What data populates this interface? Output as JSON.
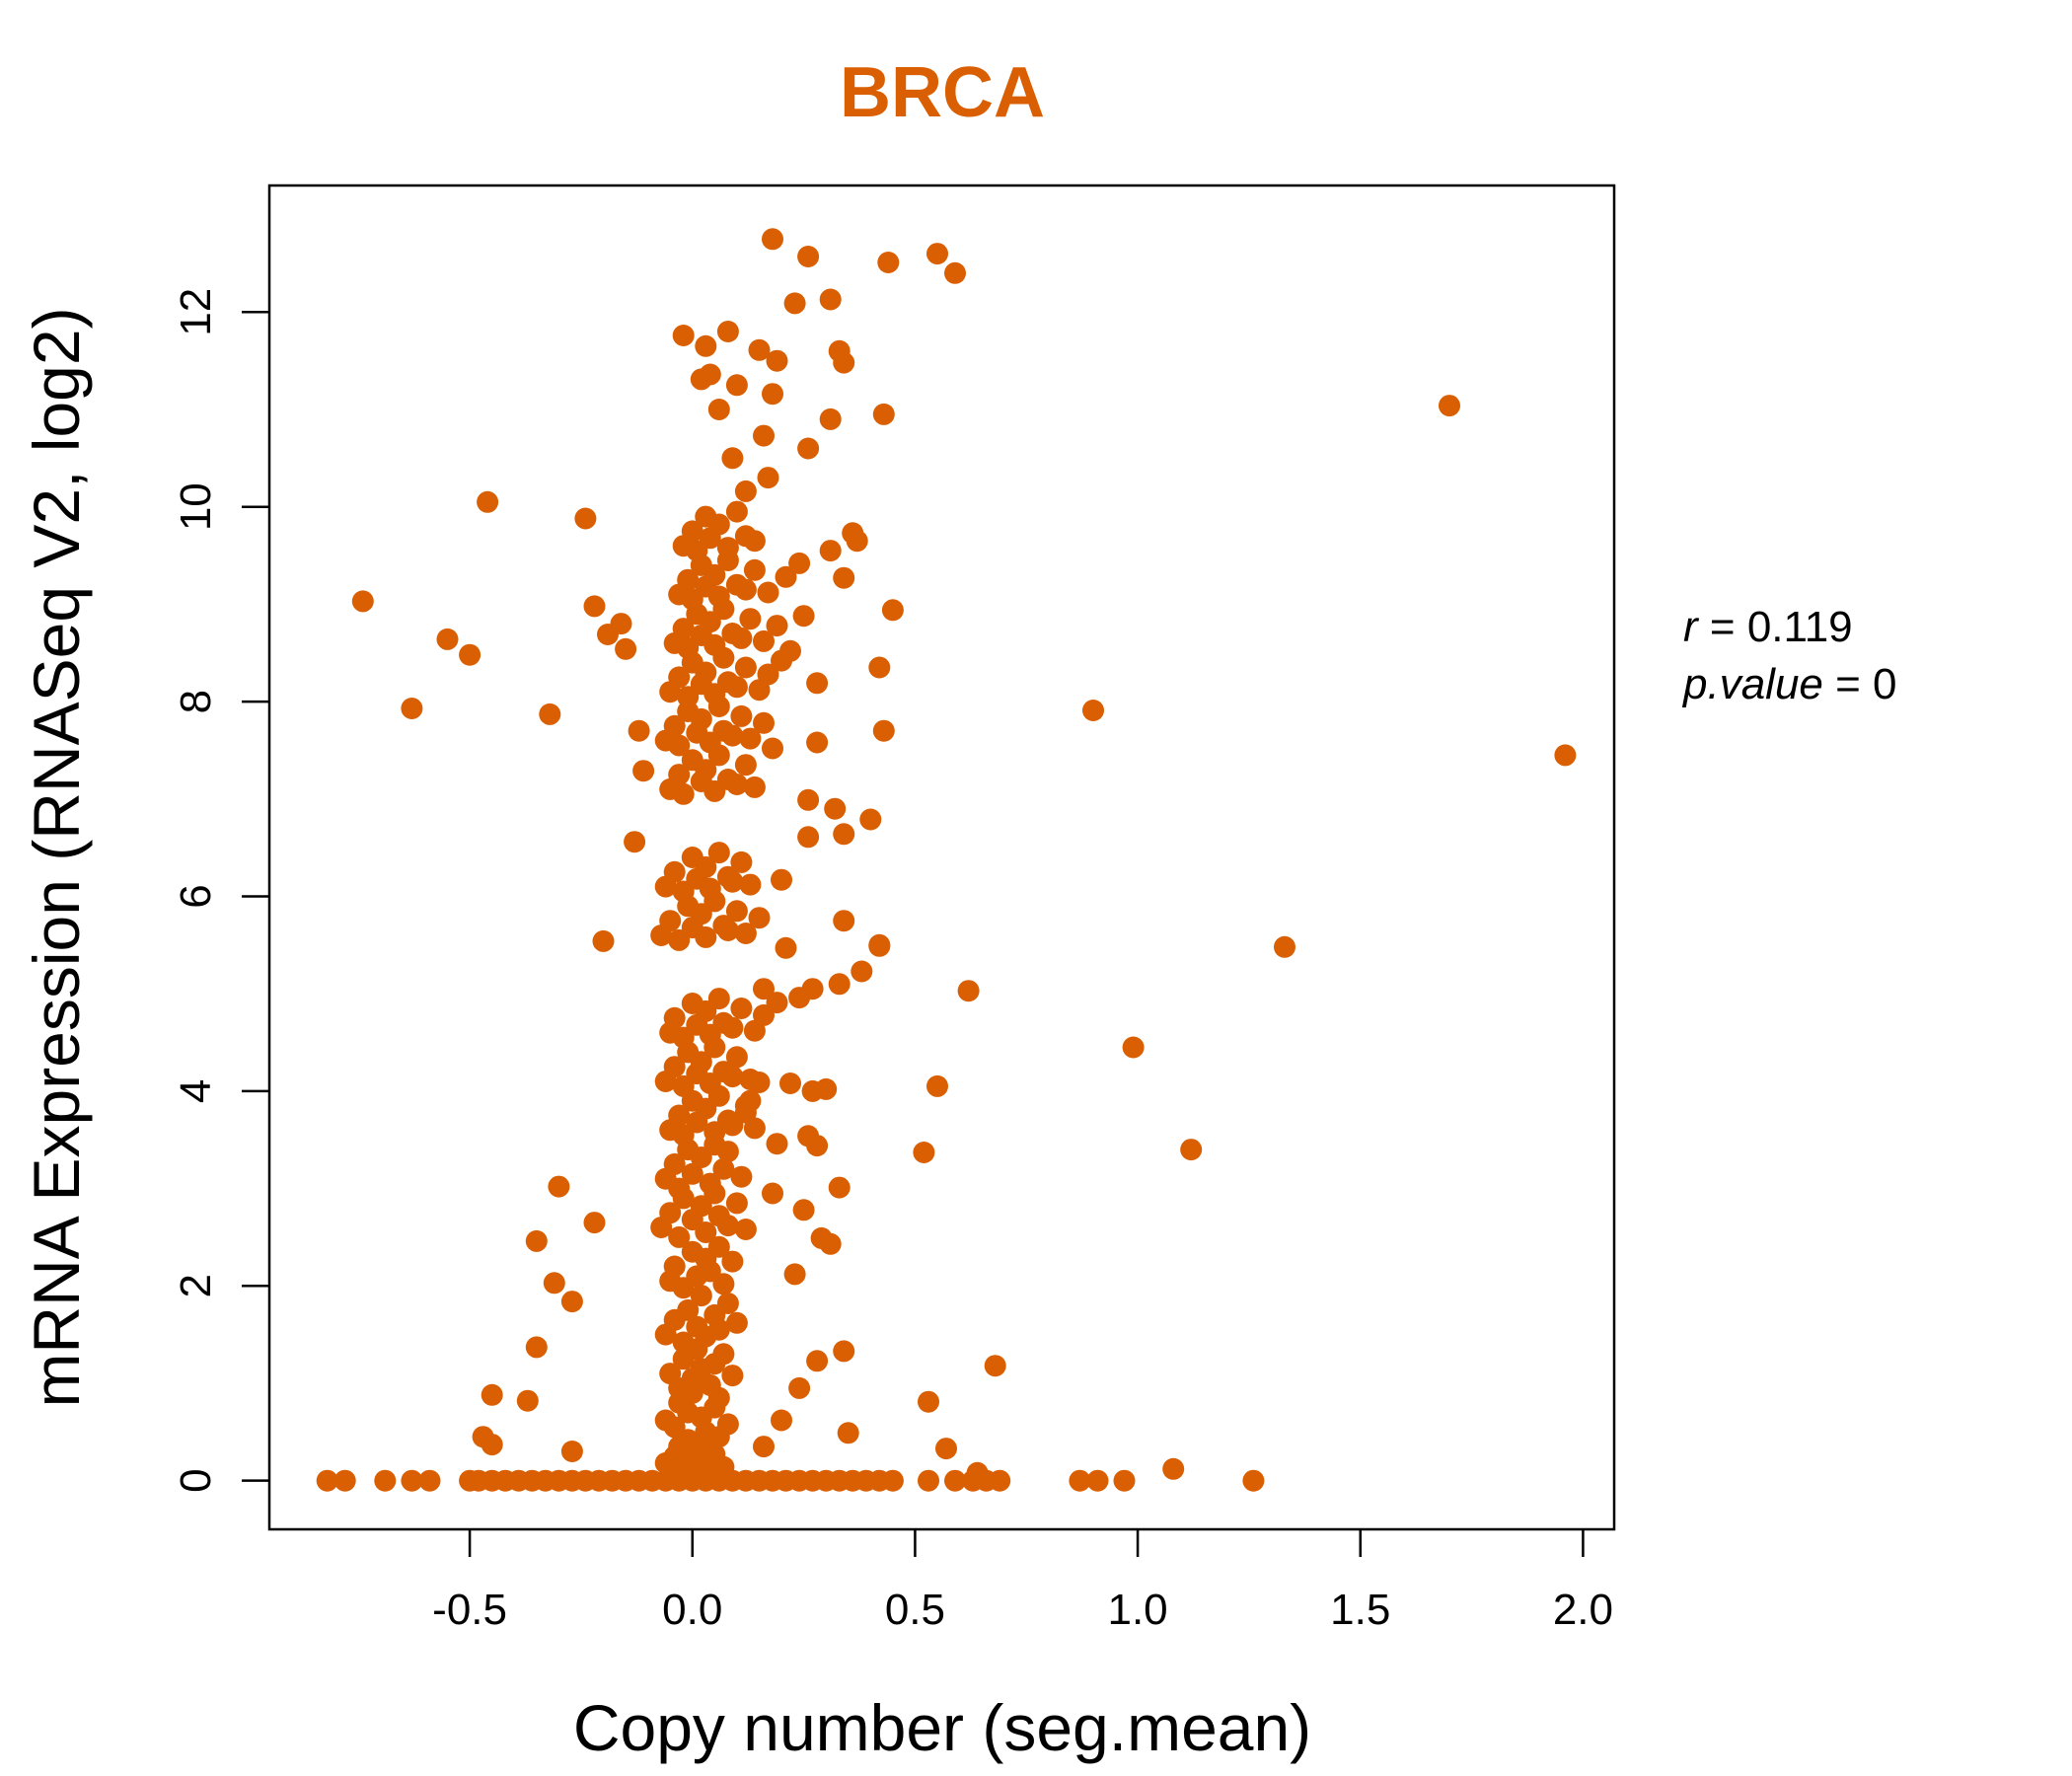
{
  "colors": {
    "points": "#D95F02",
    "title": "#D95F02",
    "axis": "#000000"
  },
  "chart_data": {
    "type": "scatter",
    "title": "BRCA",
    "xlabel": "Copy number (seg.mean)",
    "ylabel": "mRNA Expression (RNASeq V2, log2)",
    "xlim": [
      -0.95,
      2.07
    ],
    "ylim": [
      -0.5,
      13.3
    ],
    "xticks": [
      -0.5,
      0.0,
      0.5,
      1.0,
      1.5,
      2.0
    ],
    "xtick_labels": [
      "-0.5",
      "0.0",
      "0.5",
      "1.0",
      "1.5",
      "2.0"
    ],
    "yticks": [
      0,
      2,
      4,
      6,
      8,
      10,
      12
    ],
    "ytick_labels": [
      "0",
      "2",
      "4",
      "6",
      "8",
      "10",
      "12"
    ],
    "grid": false,
    "stats": {
      "r_label": "r",
      "r_value": "0.119",
      "p_label": "p.value",
      "p_value": "0"
    },
    "series": [
      {
        "x": [
          -0.82,
          -0.78,
          -0.69,
          -0.63,
          -0.59,
          -0.5,
          -0.48,
          -0.45,
          -0.42,
          -0.39,
          -0.36,
          -0.33,
          -0.3,
          -0.27,
          -0.24,
          -0.21,
          -0.18,
          -0.15,
          -0.12,
          -0.09,
          -0.06,
          -0.03,
          0.0,
          0.03,
          0.06,
          0.09,
          0.12,
          0.15,
          0.18,
          0.21,
          0.24,
          0.27,
          0.3,
          0.33,
          0.36,
          0.39,
          0.42,
          0.45,
          0.53,
          0.59,
          0.63,
          0.66,
          0.69,
          0.87,
          0.91,
          0.97,
          1.26,
          -0.74,
          -0.63,
          -0.55,
          -0.5,
          -0.46,
          -0.32,
          -0.24,
          -0.22,
          -0.19,
          -0.16,
          -0.15,
          -0.12,
          -0.11,
          -0.13,
          -0.2,
          -0.22,
          -0.27,
          -0.31,
          -0.3,
          -0.35,
          -0.35,
          -0.37,
          -0.45,
          -0.47,
          -0.45,
          -0.27,
          0.18,
          0.26,
          0.44,
          0.55,
          0.59,
          0.23,
          0.31,
          0.33,
          0.34,
          0.43,
          0.26,
          0.31,
          0.19,
          0.15,
          0.18,
          0.16,
          0.1,
          0.08,
          0.03,
          -0.02,
          0.02,
          0.04,
          0.06,
          0.09,
          0.12,
          0.36,
          0.37,
          0.31,
          0.34,
          0.45,
          0.42,
          0.28,
          0.43,
          0.28,
          0.26,
          0.32,
          0.4,
          0.34,
          0.26,
          0.2,
          0.34,
          0.42,
          0.38,
          0.33,
          0.27,
          0.24,
          0.21,
          0.19,
          0.16,
          0.15,
          0.13,
          0.12,
          0.3,
          0.27,
          0.55,
          0.52,
          0.62,
          0.42,
          0.33,
          0.28,
          0.26,
          0.22,
          0.19,
          0.25,
          0.31,
          0.29,
          0.23,
          0.18,
          0.34,
          0.57,
          0.35,
          0.53,
          0.68,
          0.64,
          0.2,
          0.16,
          0.24,
          0.28,
          1.7,
          1.96,
          0.9,
          1.33,
          0.99,
          1.12,
          1.08,
          -0.06,
          -0.05,
          -0.04,
          -0.03,
          -0.02,
          -0.01,
          0.0,
          0.01,
          0.02,
          0.03,
          0.04,
          0.05,
          0.06,
          0.07,
          -0.06,
          -0.04,
          -0.03,
          -0.01,
          0.0,
          0.02,
          0.03,
          0.05,
          0.06,
          0.08,
          -0.05,
          -0.03,
          -0.02,
          0.0,
          0.01,
          0.02,
          0.04,
          0.05,
          0.07,
          0.09,
          -0.06,
          -0.04,
          -0.02,
          -0.01,
          0.01,
          0.02,
          0.03,
          0.05,
          0.06,
          0.08,
          0.1,
          -0.05,
          -0.04,
          -0.02,
          0.0,
          0.01,
          0.03,
          0.04,
          0.06,
          0.07,
          0.09,
          -0.07,
          -0.05,
          -0.03,
          -0.02,
          0.0,
          0.02,
          0.03,
          0.05,
          0.06,
          0.08,
          0.1,
          0.12,
          -0.06,
          -0.04,
          -0.03,
          -0.01,
          0.0,
          0.02,
          0.04,
          0.05,
          0.07,
          0.08,
          0.11,
          -0.05,
          -0.03,
          -0.02,
          0.0,
          0.01,
          0.03,
          0.05,
          0.06,
          0.08,
          0.09,
          0.12,
          0.14,
          -0.06,
          -0.04,
          -0.02,
          -0.01,
          0.01,
          0.02,
          0.04,
          0.05,
          0.07,
          0.09,
          0.1,
          0.13,
          -0.05,
          -0.04,
          -0.02,
          0.0,
          0.01,
          0.03,
          0.04,
          0.06,
          0.07,
          0.09,
          0.11,
          0.14,
          0.16,
          -0.07,
          -0.05,
          -0.03,
          -0.01,
          0.0,
          0.02,
          0.03,
          0.05,
          0.07,
          0.08,
          0.1,
          0.12,
          0.15,
          -0.06,
          -0.04,
          -0.02,
          0.0,
          0.01,
          0.03,
          0.04,
          0.06,
          0.08,
          0.09,
          0.11,
          0.13,
          -0.05,
          -0.03,
          -0.02,
          0.0,
          0.02,
          0.03,
          0.05,
          0.06,
          0.08,
          0.1,
          0.12,
          0.14,
          -0.06,
          -0.04,
          -0.03,
          -0.01,
          0.01,
          0.02,
          0.04,
          0.06,
          0.07,
          0.09,
          0.11,
          0.13,
          0.16,
          0.18,
          -0.05,
          -0.03,
          -0.01,
          0.0,
          0.02,
          0.03,
          0.05,
          0.07,
          0.08,
          0.1,
          0.12,
          0.15,
          0.17,
          0.2,
          -0.04,
          -0.02,
          -0.01,
          0.01,
          0.02,
          0.04,
          0.05,
          0.07,
          0.09,
          0.11,
          0.13,
          0.16,
          0.19,
          0.22,
          0.25,
          -0.03,
          -0.01,
          0.0,
          0.02,
          0.03,
          0.05,
          0.06,
          0.08,
          0.1,
          0.12,
          0.14,
          0.17,
          0.21,
          0.24,
          -0.02,
          0.0,
          0.01,
          0.03,
          0.04,
          0.06,
          0.08,
          0.1,
          0.12,
          0.14,
          0.17
        ],
        "y": [
          0,
          0,
          0,
          0,
          0,
          0,
          0,
          0,
          0,
          0,
          0,
          0,
          0,
          0,
          0,
          0,
          0,
          0,
          0,
          0,
          0,
          0,
          0,
          0,
          0,
          0,
          0,
          0,
          0,
          0,
          0,
          0,
          0,
          0,
          0,
          0,
          0,
          0,
          0,
          0,
          0,
          0,
          0,
          0,
          0,
          0,
          0,
          9.03,
          7.93,
          8.64,
          8.48,
          10.05,
          7.87,
          9.88,
          8.98,
          8.69,
          8.8,
          8.54,
          7.7,
          7.29,
          6.56,
          5.54,
          2.65,
          1.84,
          2.03,
          3.02,
          2.46,
          1.37,
          0.82,
          0.88,
          0.45,
          0.37,
          0.3,
          12.75,
          12.57,
          12.51,
          12.6,
          12.4,
          12.09,
          12.13,
          11.6,
          11.48,
          10.95,
          10.6,
          10.9,
          11.5,
          11.61,
          11.16,
          10.73,
          11.25,
          11.8,
          11.65,
          11.76,
          11.31,
          11.36,
          11.0,
          10.5,
          10.16,
          9.73,
          9.65,
          9.55,
          9.27,
          8.94,
          8.35,
          8.19,
          7.7,
          7.58,
          6.99,
          6.9,
          6.79,
          6.64,
          6.61,
          6.17,
          5.75,
          5.5,
          5.23,
          5.1,
          5.05,
          4.96,
          5.47,
          4.91,
          5.05,
          4.09,
          3.9,
          3.78,
          4.02,
          4.0,
          4.05,
          3.37,
          5.03,
          5.49,
          3.01,
          3.44,
          3.54,
          4.08,
          3.46,
          2.78,
          2.43,
          2.49,
          2.12,
          2.95,
          1.33,
          0.33,
          0.49,
          0.81,
          1.18,
          0.08,
          0.62,
          0.35,
          0.95,
          1.23,
          11.04,
          7.45,
          7.91,
          5.48,
          4.45,
          3.4,
          0.12,
          0.18,
          0.12,
          0.25,
          0.35,
          0.16,
          0.42,
          0.3,
          0.22,
          0.1,
          0.38,
          0.19,
          0.27,
          0.45,
          0.14,
          0.62,
          0.55,
          0.8,
          0.7,
          0.9,
          0.65,
          0.5,
          0.75,
          0.85,
          0.58,
          1.1,
          0.95,
          1.25,
          1.05,
          1.35,
          1.15,
          0.98,
          1.2,
          1.3,
          1.08,
          1.5,
          1.65,
          1.42,
          1.75,
          1.58,
          1.9,
          1.48,
          1.7,
          1.55,
          1.82,
          1.62,
          2.05,
          2.2,
          1.98,
          2.35,
          2.1,
          2.28,
          2.15,
          2.4,
          2.02,
          2.25,
          2.6,
          2.75,
          2.5,
          2.9,
          2.68,
          2.82,
          2.55,
          2.95,
          2.72,
          2.62,
          2.85,
          2.58,
          3.1,
          3.25,
          3.0,
          3.4,
          3.15,
          3.32,
          3.05,
          3.45,
          3.2,
          3.38,
          3.12,
          3.6,
          3.75,
          3.55,
          3.9,
          3.68,
          3.82,
          3.58,
          3.95,
          3.7,
          3.65,
          3.85,
          3.62,
          4.1,
          4.25,
          4.05,
          4.4,
          4.18,
          4.3,
          4.08,
          4.45,
          4.2,
          4.15,
          4.35,
          4.12,
          4.6,
          4.75,
          4.55,
          4.9,
          4.68,
          4.82,
          4.58,
          4.95,
          4.7,
          4.65,
          4.85,
          4.62,
          4.78,
          5.6,
          5.75,
          5.55,
          5.9,
          5.68,
          5.82,
          5.58,
          5.95,
          5.7,
          5.65,
          5.85,
          5.62,
          5.78,
          6.1,
          6.25,
          6.05,
          6.4,
          6.18,
          6.3,
          6.08,
          6.45,
          6.2,
          6.15,
          6.35,
          6.12,
          7.1,
          7.25,
          7.05,
          7.4,
          7.18,
          7.3,
          7.08,
          7.45,
          7.2,
          7.15,
          7.35,
          7.12,
          7.6,
          7.75,
          7.55,
          7.9,
          7.68,
          7.82,
          7.58,
          7.95,
          7.7,
          7.65,
          7.85,
          7.62,
          7.78,
          7.52,
          8.1,
          8.25,
          8.05,
          8.4,
          8.18,
          8.3,
          8.08,
          8.45,
          8.2,
          8.15,
          8.35,
          8.12,
          8.28,
          8.42,
          8.6,
          8.75,
          8.55,
          8.9,
          8.68,
          8.82,
          8.58,
          8.95,
          8.7,
          8.65,
          8.85,
          8.62,
          8.78,
          8.52,
          8.88,
          9.1,
          9.25,
          9.05,
          9.4,
          9.18,
          9.3,
          9.08,
          9.45,
          9.2,
          9.15,
          9.35,
          9.12,
          9.28,
          9.42,
          9.6,
          9.75,
          9.55,
          9.9,
          9.68,
          9.82,
          9.58,
          9.95,
          9.7,
          9.65,
          10.3
        ]
      }
    ]
  }
}
